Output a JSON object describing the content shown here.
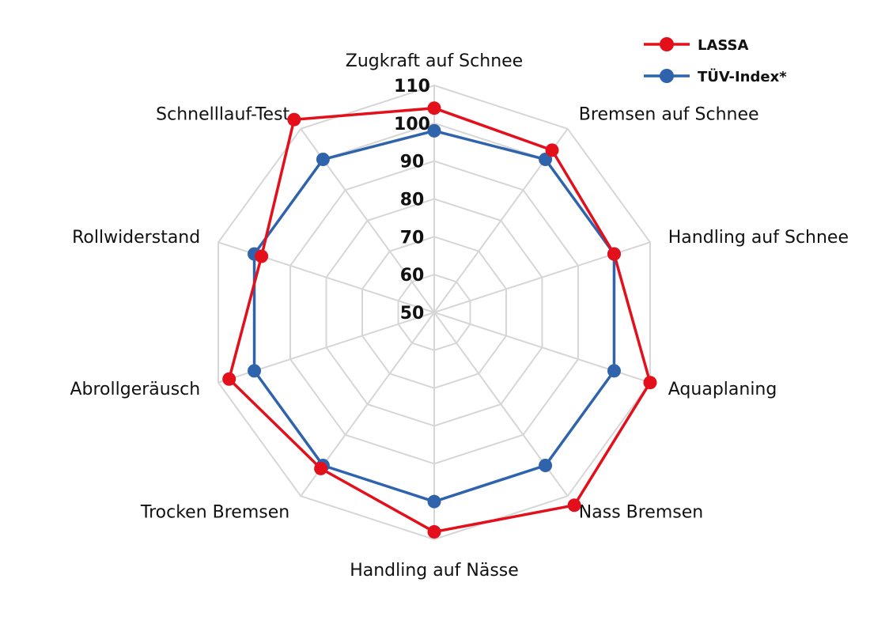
{
  "chart_data": {
    "type": "radar",
    "title": "",
    "categories": [
      "Zugkraft auf Schnee",
      "Bremsen auf Schnee",
      "Handling auf Schnee",
      "Aquaplaning",
      "Nass Bremsen",
      "Handling auf Nässe",
      "Trocken Bremsen",
      "Abrollgeräusch",
      "Rollwiderstand",
      "Schnelllauf-Test"
    ],
    "ticks": [
      "50",
      "60",
      "70",
      "80",
      "90",
      "100",
      "110"
    ],
    "rlim": [
      50,
      110
    ],
    "grid": true,
    "legend_position": "top-right",
    "series": [
      {
        "name": "LASSA",
        "color": "#e3101b",
        "values": [
          104,
          103,
          100,
          110,
          113,
          108,
          101,
          107,
          98,
          113
        ]
      },
      {
        "name": "TÜV-Index*",
        "color": "#2f64ad",
        "values": [
          98,
          100,
          100,
          100,
          100,
          100,
          100,
          100,
          100,
          100
        ]
      }
    ]
  }
}
